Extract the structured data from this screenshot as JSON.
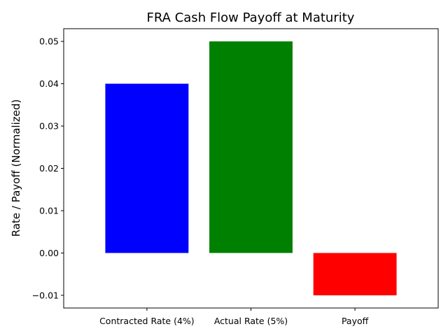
{
  "chart_data": {
    "type": "bar",
    "title": "FRA Cash Flow Payoff at Maturity",
    "xlabel": "",
    "ylabel": "Rate / Payoff (Normalized)",
    "categories": [
      "Contracted Rate (4%)",
      "Actual Rate (5%)",
      "Payoff"
    ],
    "values": [
      0.04,
      0.05,
      -0.01
    ],
    "colors": [
      "#0000ff",
      "#008000",
      "#ff0000"
    ],
    "ylim": [
      -0.013,
      0.053
    ],
    "yticks": [
      -0.01,
      0.0,
      0.01,
      0.02,
      0.03,
      0.04,
      0.05
    ],
    "ytick_labels": [
      "−0.01",
      "0.00",
      "0.01",
      "0.02",
      "0.03",
      "0.04",
      "0.05"
    ],
    "grid": false,
    "legend": false
  }
}
